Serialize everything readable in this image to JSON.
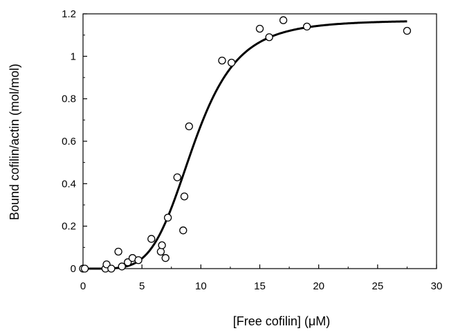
{
  "chart_data": {
    "type": "scatter",
    "xlabel": "[Free cofilin] (μM)",
    "ylabel": "Bound  cofilin/actin  (mol/mol)",
    "xlim": [
      0,
      30
    ],
    "ylim": [
      0,
      1.2
    ],
    "xticks": [
      0,
      5,
      10,
      15,
      20,
      25,
      30
    ],
    "yticks": [
      0,
      0.2,
      0.4,
      0.6,
      0.8,
      1,
      1.2
    ],
    "x_tick_labels": [
      "0",
      "5",
      "10",
      "15",
      "20",
      "25",
      "30"
    ],
    "y_tick_labels": [
      "0",
      "0.2",
      "0.4",
      "0.6",
      "0.8",
      "1",
      "1.2"
    ],
    "grid": false,
    "legend": "none",
    "series": [
      {
        "kind": "points",
        "marker": "open-circle",
        "points": [
          [
            0.0,
            0.0
          ],
          [
            0.15,
            0.0
          ],
          [
            1.9,
            0.0
          ],
          [
            2.0,
            0.02
          ],
          [
            2.4,
            0.0
          ],
          [
            3.0,
            0.08
          ],
          [
            3.3,
            0.01
          ],
          [
            3.8,
            0.03
          ],
          [
            4.2,
            0.05
          ],
          [
            4.7,
            0.04
          ],
          [
            5.8,
            0.14
          ],
          [
            6.6,
            0.08
          ],
          [
            6.7,
            0.11
          ],
          [
            7.0,
            0.05
          ],
          [
            7.2,
            0.24
          ],
          [
            8.0,
            0.43
          ],
          [
            8.5,
            0.18
          ],
          [
            8.6,
            0.34
          ],
          [
            9.0,
            0.67
          ],
          [
            11.8,
            0.98
          ],
          [
            12.6,
            0.97
          ],
          [
            15.0,
            1.13
          ],
          [
            15.8,
            1.09
          ],
          [
            17.0,
            1.17
          ],
          [
            19.0,
            1.14
          ],
          [
            27.5,
            1.12
          ]
        ]
      },
      {
        "kind": "fit-curve",
        "model": "hill",
        "max": 1.17,
        "k_half": 9.4,
        "n": 5,
        "x_range": [
          0,
          27.5
        ]
      }
    ]
  }
}
